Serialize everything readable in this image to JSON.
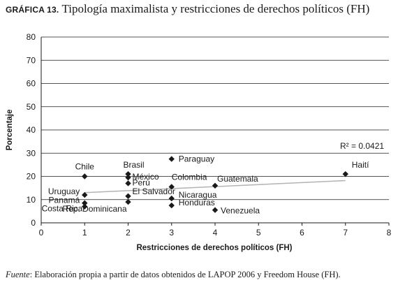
{
  "header": {
    "label": "GRÁFICA 13.",
    "title": "Tipología maximalista y restricciones de derechos políticos (FH)"
  },
  "footer": {
    "source_label": "Fuente",
    "source_text": ": Elaboración propia a partir de datos obtenidos de LAPOP 2006 y Freedom House (FH)."
  },
  "chart_data": {
    "type": "scatter",
    "xlabel": "Restricciones de derechos políticos (FH)",
    "ylabel": "Porcentaje",
    "xlim": [
      0,
      8
    ],
    "ylim": [
      0,
      80
    ],
    "xticks": [
      0,
      1,
      2,
      3,
      4,
      5,
      6,
      7,
      8
    ],
    "yticks": [
      0,
      10,
      20,
      30,
      40,
      50,
      60,
      70,
      80
    ],
    "grid": "horizontal",
    "points": [
      {
        "label": "Chile",
        "x": 1,
        "y": 20
      },
      {
        "label": "Uruguay",
        "x": 1,
        "y": 12
      },
      {
        "label": "Panamá",
        "x": 1,
        "y": 8.5
      },
      {
        "label": "Costa Rica",
        "x": 1,
        "y": 7
      },
      {
        "label": "Brasil",
        "x": 2,
        "y": 21
      },
      {
        "label": "México",
        "x": 2,
        "y": 19.5
      },
      {
        "label": "Perú",
        "x": 2,
        "y": 17
      },
      {
        "label": "El Salvador",
        "x": 2,
        "y": 11.5
      },
      {
        "label": "Rep. Dominicana",
        "x": 2,
        "y": 9
      },
      {
        "label": "Paraguay",
        "x": 3,
        "y": 27.5
      },
      {
        "label": "Colombia",
        "x": 3,
        "y": 15.5
      },
      {
        "label": "Nicaragua",
        "x": 3,
        "y": 10.5
      },
      {
        "label": "Honduras",
        "x": 3,
        "y": 7.5
      },
      {
        "label": "Guatemala",
        "x": 4,
        "y": 16
      },
      {
        "label": "Venezuela",
        "x": 4,
        "y": 5.5
      },
      {
        "label": "Haití",
        "x": 7,
        "y": 21
      }
    ],
    "trendline": {
      "x": [
        1,
        7
      ],
      "y": [
        13,
        18.2
      ]
    },
    "annotation": "R² = 0.0421",
    "colors": {
      "points": "#1a1a1a",
      "trendline": "#b3b3b3",
      "grid": "#1a1a1a"
    }
  }
}
